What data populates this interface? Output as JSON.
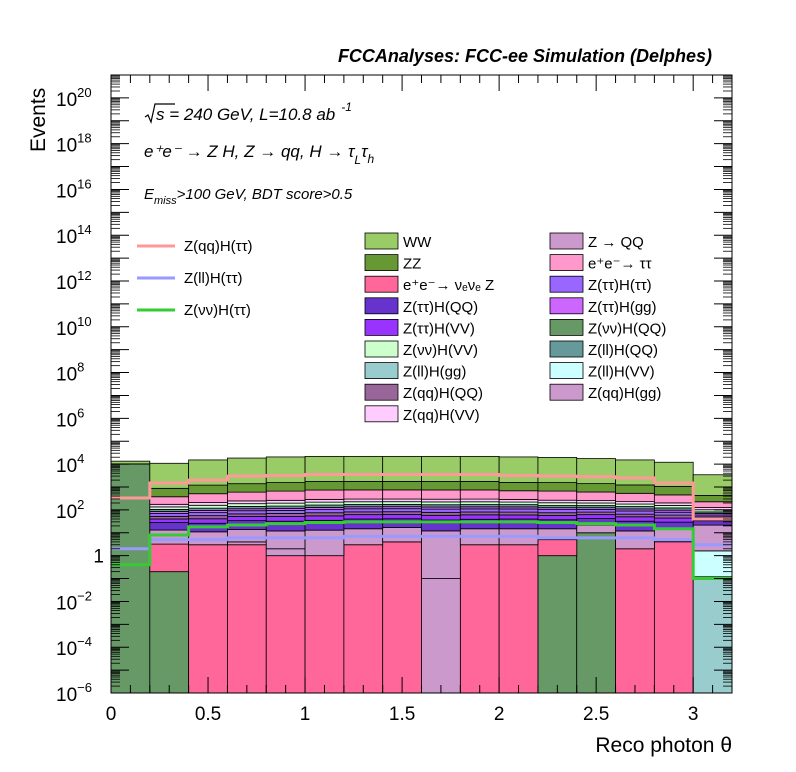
{
  "chart_data": {
    "type": "bar",
    "stacked": true,
    "title": "FCCAnalyses: FCC-ee Simulation (Delphes)",
    "xlabel": "Reco photon θ",
    "ylabel": "Events",
    "xlim": [
      0,
      3.2
    ],
    "ylim": [
      1e-06,
      1e+21
    ],
    "log_y": true,
    "x_ticks": [
      "0",
      "0.5",
      "1",
      "1.5",
      "2",
      "2.5",
      "3"
    ],
    "y_ticks": [
      {
        "base": "10",
        "exp": "−6"
      },
      {
        "base": "10",
        "exp": "−4"
      },
      {
        "base": "10",
        "exp": "−2"
      },
      {
        "base": "1",
        "exp": ""
      },
      {
        "base": "10",
        "exp": "2"
      },
      {
        "base": "10",
        "exp": "4"
      },
      {
        "base": "10",
        "exp": "6"
      },
      {
        "base": "10",
        "exp": "8"
      },
      {
        "base": "10",
        "exp": "10"
      },
      {
        "base": "10",
        "exp": "12"
      },
      {
        "base": "10",
        "exp": "14"
      },
      {
        "base": "10",
        "exp": "16"
      },
      {
        "base": "10",
        "exp": "18"
      },
      {
        "base": "10",
        "exp": "20"
      }
    ],
    "annotations": {
      "energy_sqrt": "s",
      "energy_rest": " = 240 GeV, L=10.8 ab",
      "energy_exp": "-1",
      "process": "e⁺e⁻ → Z H, Z → qq, H → τ",
      "process_sub1": "L",
      "process_mid": "τ",
      "process_sub2": "h",
      "cut_e": "E",
      "cut_sub": "miss",
      "cut_rest": ">100 GeV, BDT score>0.5"
    },
    "bin_edges": [
      0,
      0.2,
      0.4,
      0.6,
      0.8,
      1.0,
      1.2,
      1.4,
      1.6,
      1.8,
      2.0,
      2.2,
      2.4,
      2.6,
      2.8,
      3.0,
      3.2
    ],
    "stack_series": [
      {
        "name": "Z(νν)H(QQ)",
        "color": "#669966",
        "values": [
          10000.0,
          0.2,
          0,
          0,
          0,
          0,
          0,
          0,
          0,
          0,
          0,
          1.0,
          10,
          0,
          0,
          0
        ]
      },
      {
        "name": "e⁺e⁻→ νₑνₑ Z",
        "color": "#ff6699",
        "values": [
          0,
          3,
          3,
          3,
          1,
          1,
          3,
          4,
          0,
          3,
          3,
          4,
          0,
          2,
          4,
          0
        ]
      },
      {
        "name": "Z → QQ",
        "color": "#cc99cc",
        "values": [
          0,
          0,
          0,
          1,
          1,
          0,
          0,
          0,
          0.1,
          0,
          0,
          0,
          0,
          0,
          0.1,
          0
        ]
      },
      {
        "name": "Z(ll)H(gg)",
        "color": "#99cccc",
        "values": [
          0,
          0,
          0,
          0,
          0,
          0,
          0,
          0,
          0,
          0,
          0,
          0,
          0,
          0,
          0,
          0.12
        ]
      },
      {
        "name": "Z(ll)H(VV)",
        "color": "#ccffff",
        "values": [
          0,
          0,
          0,
          0,
          0,
          0,
          0,
          0,
          0,
          0,
          0,
          0,
          0,
          0,
          0,
          1.5
        ]
      },
      {
        "name": "Z(qq)H(gg)",
        "color": "#cc99cc",
        "values": [
          4,
          10,
          8,
          10,
          10,
          12,
          12,
          13,
          12,
          12,
          12,
          10,
          12,
          10,
          10,
          20
        ]
      },
      {
        "name": "Z(ττ)H(QQ)",
        "color": "#6633cc",
        "values": [
          5,
          15,
          15,
          20,
          20,
          22,
          25,
          24,
          24,
          24,
          25,
          22,
          20,
          20,
          15,
          12
        ]
      },
      {
        "name": "Z(ττ)H(VV)",
        "color": "#9933ff",
        "values": [
          5,
          12,
          15,
          18,
          20,
          20,
          22,
          22,
          22,
          22,
          20,
          20,
          20,
          18,
          15,
          8
        ]
      },
      {
        "name": "Z(qq)H(QQ)",
        "color": "#996699",
        "values": [
          4,
          12,
          15,
          15,
          18,
          20,
          20,
          20,
          20,
          20,
          20,
          18,
          18,
          15,
          15,
          8
        ]
      },
      {
        "name": "Z(ττ)H(ττ)",
        "color": "#9966ff",
        "values": [
          6,
          18,
          20,
          25,
          25,
          28,
          30,
          30,
          30,
          30,
          30,
          28,
          25,
          25,
          20,
          10
        ]
      },
      {
        "name": "Z(ττ)H(gg)",
        "color": "#cc66ff",
        "values": [
          4,
          15,
          18,
          20,
          22,
          25,
          25,
          25,
          25,
          25,
          25,
          22,
          20,
          20,
          18,
          10
        ]
      },
      {
        "name": "Z(ll)H(QQ)",
        "color": "#669999",
        "values": [
          5,
          20,
          25,
          30,
          30,
          35,
          35,
          35,
          35,
          35,
          35,
          30,
          30,
          30,
          25,
          12
        ]
      },
      {
        "name": "Z(νν)H(VV)",
        "color": "#ccffcc",
        "values": [
          8,
          30,
          40,
          45,
          50,
          55,
          55,
          55,
          55,
          55,
          50,
          50,
          45,
          40,
          35,
          20
        ]
      },
      {
        "name": "Z(qq)H(VV)",
        "color": "#ffccff",
        "values": [
          10,
          40,
          50,
          60,
          65,
          70,
          70,
          70,
          70,
          70,
          65,
          60,
          55,
          50,
          45,
          25
        ]
      },
      {
        "name": "e⁺e⁻→ ττ",
        "color": "#ff99cc",
        "values": [
          80,
          200,
          300,
          350,
          400,
          450,
          450,
          450,
          450,
          450,
          400,
          400,
          350,
          300,
          250,
          100
        ]
      },
      {
        "name": "ZZ",
        "color": "#669933",
        "values": [
          120,
          500,
          700,
          800,
          900,
          1000,
          1000,
          1000,
          1000,
          1000,
          900,
          900,
          800,
          700,
          600,
          200
        ]
      },
      {
        "name": "WW",
        "color": "#99cc66",
        "values": [
          3200,
          10000,
          14000,
          17000,
          19000,
          20000,
          20000,
          20000,
          20000,
          20000,
          19000,
          18000,
          16000,
          14000,
          11000,
          3000
        ]
      }
    ],
    "line_series": [
      {
        "name": "Z(qq)H(ττ)",
        "color": "#ff9999",
        "values": [
          330,
          1500,
          2000,
          3000,
          3200,
          3500,
          3500,
          3500,
          3500,
          3500,
          3200,
          3000,
          2800,
          2500,
          1500,
          40
        ]
      },
      {
        "name": "Z(ll)H(ττ)",
        "color": "#9999ff",
        "values": [
          2,
          5,
          5,
          6,
          6,
          6,
          7,
          7,
          7,
          7,
          7,
          6,
          6,
          6,
          5,
          3
        ]
      },
      {
        "name": "Z(νν)H(ττ)",
        "color": "#33cc33",
        "values": [
          0.4,
          8,
          18,
          22,
          25,
          28,
          30,
          30,
          30,
          30,
          30,
          28,
          25,
          22,
          15,
          0.1
        ]
      }
    ],
    "legend_lines": [
      {
        "name": "Z(qq)H(ττ)",
        "color": "#ff9999"
      },
      {
        "name": "Z(ll)H(ττ)",
        "color": "#9999ff"
      },
      {
        "name": "Z(νν)H(ττ)",
        "color": "#33cc33"
      }
    ],
    "legend_col1": [
      {
        "name": "WW",
        "color": "#99cc66"
      },
      {
        "name": "ZZ",
        "color": "#669933"
      },
      {
        "name": "e⁺e⁻→ νₑνₑ Z",
        "color": "#ff6699"
      },
      {
        "name": "Z(ττ)H(QQ)",
        "color": "#6633cc"
      },
      {
        "name": "Z(ττ)H(VV)",
        "color": "#9933ff"
      },
      {
        "name": "Z(νν)H(VV)",
        "color": "#ccffcc"
      },
      {
        "name": "Z(ll)H(gg)",
        "color": "#99cccc"
      },
      {
        "name": "Z(qq)H(QQ)",
        "color": "#996699"
      },
      {
        "name": "Z(qq)H(VV)",
        "color": "#ffccff"
      }
    ],
    "legend_col2": [
      {
        "name": "Z → QQ",
        "color": "#cc99cc"
      },
      {
        "name": "e⁺e⁻→ ττ",
        "color": "#ff99cc"
      },
      {
        "name": "Z(ττ)H(ττ)",
        "color": "#9966ff"
      },
      {
        "name": "Z(ττ)H(gg)",
        "color": "#cc66ff"
      },
      {
        "name": "Z(νν)H(QQ)",
        "color": "#669966"
      },
      {
        "name": "Z(ll)H(QQ)",
        "color": "#669999"
      },
      {
        "name": "Z(ll)H(VV)",
        "color": "#ccffff"
      },
      {
        "name": "Z(qq)H(gg)",
        "color": "#cc99cc"
      }
    ]
  }
}
